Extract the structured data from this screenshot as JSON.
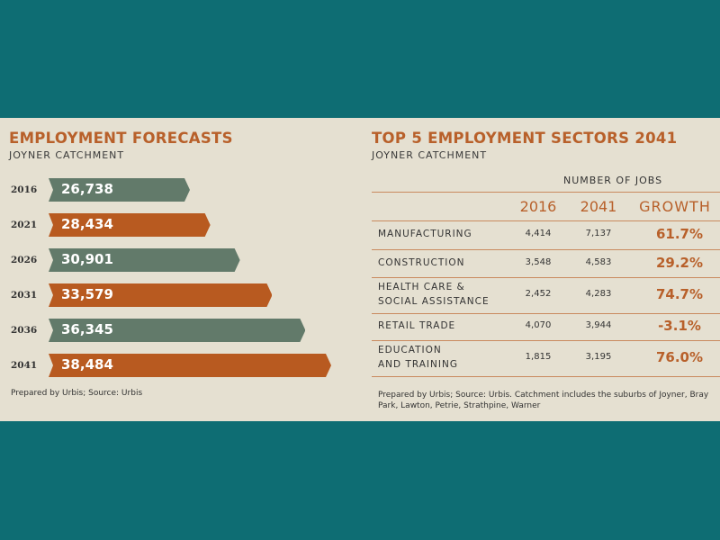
{
  "colors": {
    "background": "#0e6d73",
    "panel": "#e5e0d1",
    "orange": "#b85a20",
    "green": "#627a6a",
    "accent_text": "#b8602a"
  },
  "chart_data": [
    {
      "type": "bar",
      "orientation": "horizontal",
      "title": "EMPLOYMENT FORECASTS",
      "subtitle": "JOYNER CATCHMENT",
      "categories": [
        "2016",
        "2021",
        "2026",
        "2031",
        "2036",
        "2041"
      ],
      "values": [
        26738,
        28434,
        30901,
        33579,
        36345,
        38484
      ],
      "labels": [
        "26,738",
        "28,434",
        "30,901",
        "33,579",
        "36,345",
        "38,484"
      ],
      "bar_colors": [
        "#627a6a",
        "#b85a20",
        "#627a6a",
        "#b85a20",
        "#627a6a",
        "#b85a20"
      ],
      "note": "Prepared by Urbis; Source: Urbis"
    },
    {
      "type": "table",
      "title": "TOP 5 EMPLOYMENT SECTORS 2041",
      "subtitle": "JOYNER CATCHMENT",
      "group_header": "NUMBER OF JOBS",
      "columns": [
        "2016",
        "2041",
        "GROWTH"
      ],
      "rows": [
        {
          "sector": [
            "MANUFACTURING"
          ],
          "v2016": "4,414",
          "v2041": "7,137",
          "growth": "61.7%"
        },
        {
          "sector": [
            "CONSTRUCTION"
          ],
          "v2016": "3,548",
          "v2041": "4,583",
          "growth": "29.2%"
        },
        {
          "sector": [
            "HEALTH CARE &",
            "SOCIAL ASSISTANCE"
          ],
          "v2016": "2,452",
          "v2041": "4,283",
          "growth": "74.7%"
        },
        {
          "sector": [
            "RETAIL TRADE"
          ],
          "v2016": "4,070",
          "v2041": "3,944",
          "growth": "-3.1%"
        },
        {
          "sector": [
            "EDUCATION",
            "AND TRAINING"
          ],
          "v2016": "1,815",
          "v2041": "3,195",
          "growth": "76.0%"
        }
      ],
      "note": "Prepared by Urbis; Source: Urbis. Catchment includes the suburbs of Joyner, Bray Park, Lawton, Petrie, Strathpine, Warner"
    }
  ]
}
